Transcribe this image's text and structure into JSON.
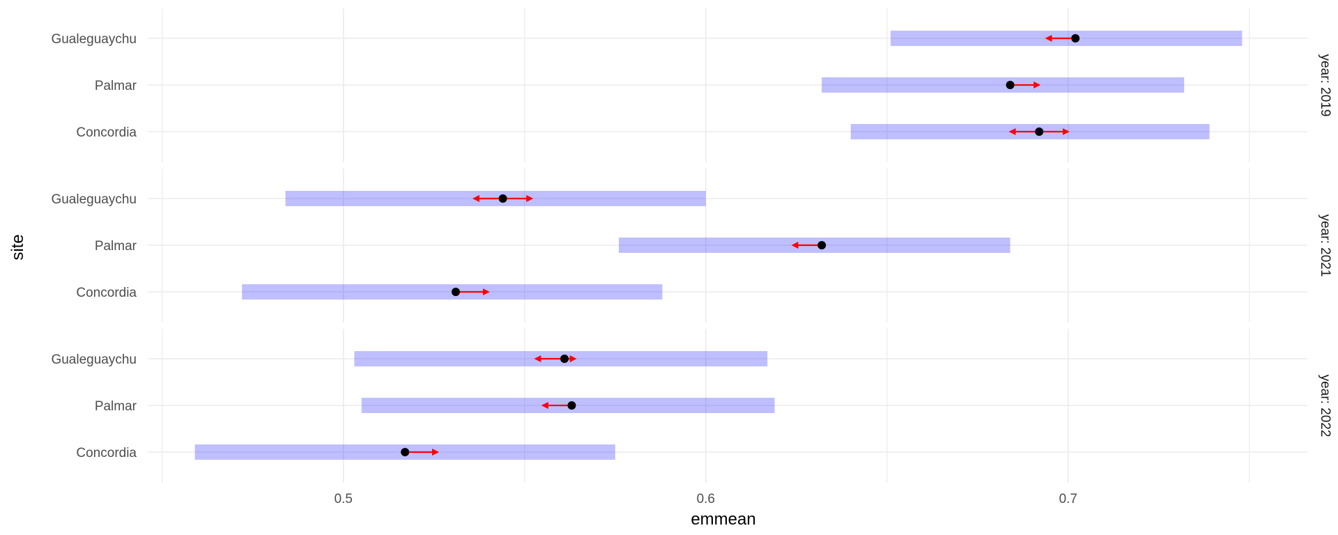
{
  "chart_data": {
    "type": "interval",
    "xlabel": "emmean",
    "ylabel": "site",
    "xlim": [
      0.446,
      0.766
    ],
    "x_ticks": [
      0.5,
      0.6,
      0.7
    ],
    "x_tick_labels": [
      "0.5",
      "0.6",
      "0.7"
    ],
    "categories": [
      "Gualeguaychu",
      "Palmar",
      "Concordia"
    ],
    "grid": true,
    "colors": {
      "interval": "#0000ff",
      "point": "#000000",
      "arrow": "#ff0000",
      "grid": "#ebebeb"
    },
    "panels": [
      {
        "strip_label": "year: 2019",
        "rows": [
          {
            "site": "Gualeguaychu",
            "emmean": 0.702,
            "lower": 0.651,
            "upper": 0.748,
            "arrow_to": 0.694
          },
          {
            "site": "Palmar",
            "emmean": 0.684,
            "lower": 0.632,
            "upper": 0.732,
            "arrow_to": 0.692
          },
          {
            "site": "Concordia",
            "emmean": 0.692,
            "lower": 0.64,
            "upper": 0.739,
            "arrow_from": 0.684,
            "arrow_to": 0.7
          }
        ]
      },
      {
        "strip_label": "year: 2021",
        "rows": [
          {
            "site": "Gualeguaychu",
            "emmean": 0.544,
            "lower": 0.484,
            "upper": 0.6,
            "arrow_from": 0.536,
            "arrow_to": 0.552
          },
          {
            "site": "Palmar",
            "emmean": 0.632,
            "lower": 0.576,
            "upper": 0.684,
            "arrow_to": 0.624
          },
          {
            "site": "Concordia",
            "emmean": 0.531,
            "lower": 0.472,
            "upper": 0.588,
            "arrow_to": 0.54
          }
        ]
      },
      {
        "strip_label": "year: 2022",
        "rows": [
          {
            "site": "Gualeguaychu",
            "emmean": 0.561,
            "lower": 0.503,
            "upper": 0.617,
            "arrow_from": 0.553,
            "arrow_to": 0.564
          },
          {
            "site": "Palmar",
            "emmean": 0.563,
            "lower": 0.505,
            "upper": 0.619,
            "arrow_to": 0.555
          },
          {
            "site": "Concordia",
            "emmean": 0.517,
            "lower": 0.459,
            "upper": 0.575,
            "arrow_to": 0.526
          }
        ]
      }
    ]
  }
}
